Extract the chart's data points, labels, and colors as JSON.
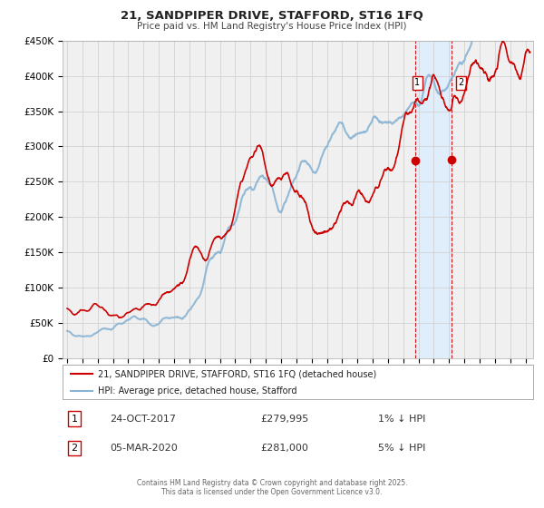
{
  "title": "21, SANDPIPER DRIVE, STAFFORD, ST16 1FQ",
  "subtitle": "Price paid vs. HM Land Registry's House Price Index (HPI)",
  "ylim": [
    0,
    450000
  ],
  "xlim_start": 1994.7,
  "xlim_end": 2025.5,
  "yticks": [
    0,
    50000,
    100000,
    150000,
    200000,
    250000,
    300000,
    350000,
    400000,
    450000
  ],
  "ytick_labels": [
    "£0",
    "£50K",
    "£100K",
    "£150K",
    "£200K",
    "£250K",
    "£300K",
    "£350K",
    "£400K",
    "£450K"
  ],
  "xticks": [
    1995,
    1996,
    1997,
    1998,
    1999,
    2000,
    2001,
    2002,
    2003,
    2004,
    2005,
    2006,
    2007,
    2008,
    2009,
    2010,
    2011,
    2012,
    2013,
    2014,
    2015,
    2016,
    2017,
    2018,
    2019,
    2020,
    2021,
    2022,
    2023,
    2024,
    2025
  ],
  "hpi_color": "#88b4d4",
  "price_color": "#cc0000",
  "marker_color": "#cc0000",
  "grid_color": "#cccccc",
  "bg_color": "#ffffff",
  "plot_bg_color": "#f0f0f0",
  "shade_color": "#ddeeff",
  "vline_color": "#cc0000",
  "event1_x": 2017.81,
  "event2_x": 2020.17,
  "event1_price": 279995,
  "event2_price": 281000,
  "event1_date": "24-OCT-2017",
  "event2_date": "05-MAR-2020",
  "event1_diff": "1% ↓ HPI",
  "event2_diff": "5% ↓ HPI",
  "legend_line1": "21, SANDPIPER DRIVE, STAFFORD, ST16 1FQ (detached house)",
  "legend_line2": "HPI: Average price, detached house, Stafford",
  "footnote1": "Contains HM Land Registry data © Crown copyright and database right 2025.",
  "footnote2": "This data is licensed under the Open Government Licence v3.0."
}
